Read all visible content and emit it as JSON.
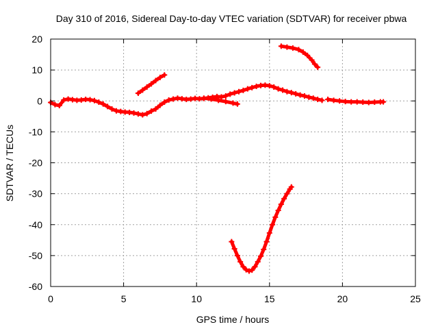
{
  "chart_data": {
    "type": "scatter",
    "title": "Day 310 of 2016, Sidereal Day-to-day VTEC variation (SDTVAR) for receiver pbwa",
    "xlabel": "GPS time / hours",
    "ylabel": "SDTVAR / TECUs",
    "xlim": [
      0,
      25
    ],
    "ylim": [
      -60,
      20
    ],
    "x_ticks": [
      0,
      5,
      10,
      15,
      20,
      25
    ],
    "y_ticks": [
      -60,
      -50,
      -40,
      -30,
      -20,
      -10,
      0,
      10,
      20
    ],
    "grid": true,
    "marker": "plus",
    "series_color": "#ff0000",
    "series": [
      {
        "name": "main-track",
        "points": [
          [
            0.0,
            -0.5
          ],
          [
            0.3,
            -1.2
          ],
          [
            0.6,
            -1.5
          ],
          [
            0.9,
            0.3
          ],
          [
            1.2,
            0.6
          ],
          [
            1.5,
            0.4
          ],
          [
            1.8,
            0.2
          ],
          [
            2.1,
            0.3
          ],
          [
            2.4,
            0.5
          ],
          [
            2.7,
            0.4
          ],
          [
            3.0,
            0.1
          ],
          [
            3.3,
            -0.4
          ],
          [
            3.6,
            -1.0
          ],
          [
            3.9,
            -1.8
          ],
          [
            4.2,
            -2.6
          ],
          [
            4.5,
            -3.2
          ],
          [
            4.8,
            -3.4
          ],
          [
            5.1,
            -3.6
          ],
          [
            5.4,
            -3.7
          ],
          [
            5.7,
            -3.9
          ],
          [
            6.0,
            -4.2
          ],
          [
            6.3,
            -4.5
          ],
          [
            6.6,
            -4.1
          ],
          [
            6.9,
            -3.3
          ],
          [
            7.2,
            -2.6
          ],
          [
            7.5,
            -1.4
          ],
          [
            7.8,
            -0.4
          ],
          [
            8.1,
            0.3
          ],
          [
            8.4,
            0.6
          ],
          [
            8.7,
            0.9
          ],
          [
            9.0,
            0.7
          ],
          [
            9.3,
            0.5
          ],
          [
            9.6,
            0.6
          ],
          [
            9.9,
            0.8
          ],
          [
            10.2,
            0.7
          ],
          [
            10.5,
            0.8
          ],
          [
            10.8,
            1.0
          ],
          [
            11.1,
            1.2
          ],
          [
            11.4,
            1.4
          ],
          [
            11.7,
            1.3
          ],
          [
            12.0,
            1.6
          ],
          [
            12.3,
            2.2
          ],
          [
            12.6,
            2.6
          ],
          [
            12.9,
            3.0
          ],
          [
            13.2,
            3.4
          ],
          [
            13.5,
            3.9
          ],
          [
            13.8,
            4.3
          ],
          [
            14.1,
            4.7
          ],
          [
            14.4,
            5.0
          ],
          [
            14.7,
            5.1
          ],
          [
            15.0,
            4.9
          ],
          [
            15.3,
            4.5
          ],
          [
            15.6,
            3.9
          ],
          [
            15.9,
            3.5
          ],
          [
            16.2,
            3.0
          ],
          [
            16.5,
            2.7
          ],
          [
            16.8,
            2.3
          ],
          [
            17.1,
            1.9
          ],
          [
            17.4,
            1.6
          ],
          [
            17.7,
            1.2
          ],
          [
            18.0,
            0.9
          ],
          [
            18.3,
            0.5
          ],
          [
            18.6,
            0.2
          ]
        ]
      },
      {
        "name": "dip-spur",
        "points": [
          [
            10.5,
            0.9
          ],
          [
            11.0,
            0.6
          ],
          [
            11.5,
            0.2
          ],
          [
            12.0,
            -0.2
          ],
          [
            12.5,
            -0.7
          ],
          [
            12.8,
            -1.0
          ]
        ]
      },
      {
        "name": "rising-track",
        "points": [
          [
            6.0,
            2.5
          ],
          [
            6.3,
            3.5
          ],
          [
            6.6,
            4.5
          ],
          [
            6.9,
            5.5
          ],
          [
            7.2,
            6.6
          ],
          [
            7.5,
            7.6
          ],
          [
            7.8,
            8.4
          ]
        ]
      },
      {
        "name": "upper-track",
        "points": [
          [
            15.8,
            17.7
          ],
          [
            16.2,
            17.4
          ],
          [
            16.6,
            17.1
          ],
          [
            17.0,
            16.6
          ],
          [
            17.3,
            15.8
          ],
          [
            17.6,
            14.7
          ],
          [
            17.9,
            13.2
          ],
          [
            18.1,
            11.9
          ],
          [
            18.3,
            10.9
          ]
        ]
      },
      {
        "name": "late-track",
        "points": [
          [
            19.0,
            0.5
          ],
          [
            19.4,
            0.2
          ],
          [
            19.8,
            0.0
          ],
          [
            20.2,
            -0.2
          ],
          [
            20.6,
            -0.3
          ],
          [
            21.0,
            -0.3
          ],
          [
            21.4,
            -0.4
          ],
          [
            21.8,
            -0.5
          ],
          [
            22.2,
            -0.4
          ],
          [
            22.6,
            -0.3
          ],
          [
            22.8,
            -0.3
          ]
        ]
      },
      {
        "name": "v-curve",
        "points": [
          [
            12.4,
            -45.5
          ],
          [
            12.6,
            -47.8
          ],
          [
            12.8,
            -50.0
          ],
          [
            13.0,
            -52.0
          ],
          [
            13.2,
            -53.6
          ],
          [
            13.4,
            -54.6
          ],
          [
            13.6,
            -55.0
          ],
          [
            13.8,
            -54.7
          ],
          [
            14.0,
            -53.6
          ],
          [
            14.2,
            -52.0
          ],
          [
            14.4,
            -50.2
          ],
          [
            14.6,
            -48.0
          ],
          [
            14.8,
            -45.5
          ],
          [
            15.0,
            -42.7
          ],
          [
            15.2,
            -40.0
          ],
          [
            15.4,
            -37.6
          ],
          [
            15.6,
            -35.4
          ],
          [
            15.8,
            -33.4
          ],
          [
            16.0,
            -31.6
          ],
          [
            16.2,
            -30.0
          ],
          [
            16.4,
            -28.5
          ],
          [
            16.5,
            -27.8
          ]
        ]
      }
    ]
  }
}
